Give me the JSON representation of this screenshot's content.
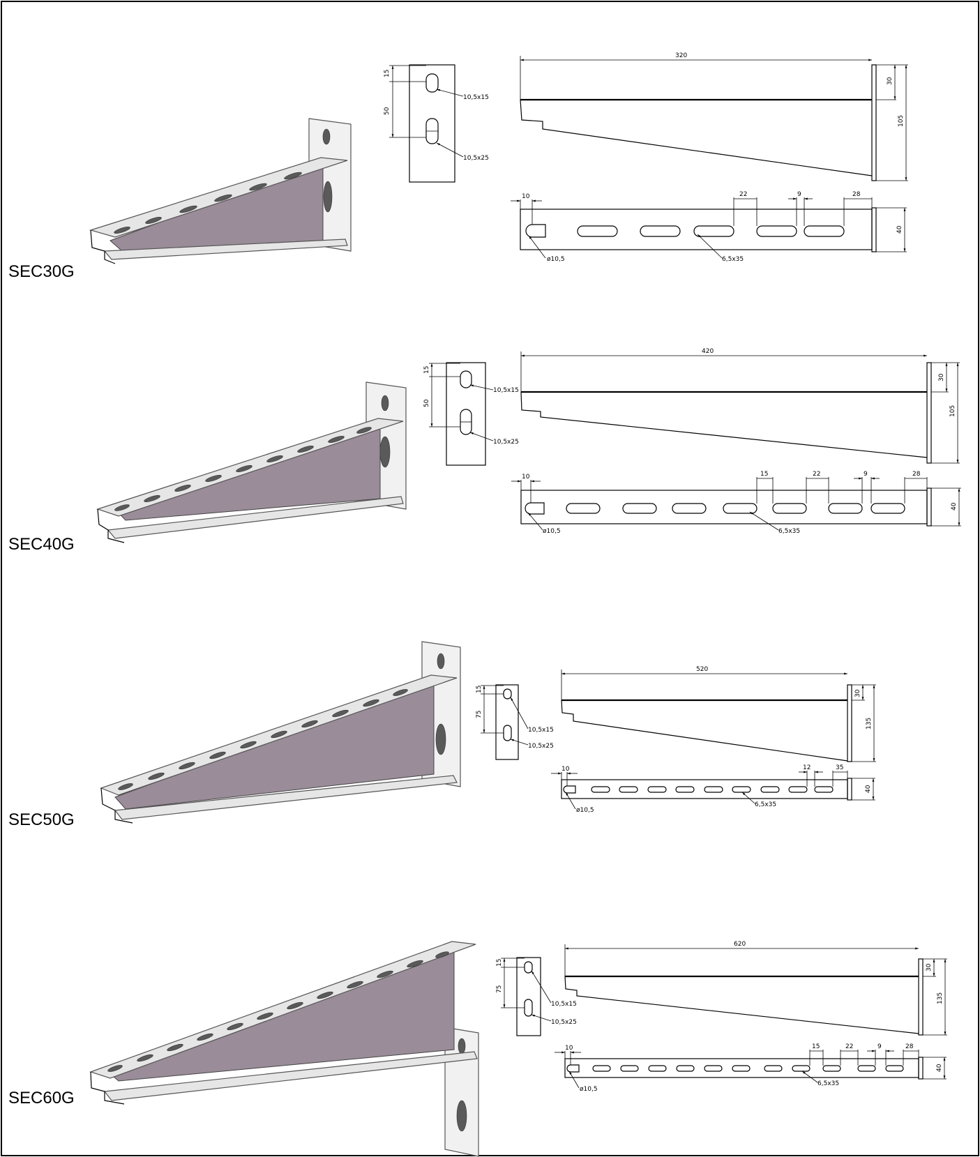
{
  "products": [
    {
      "label": "SEC30G",
      "front": {
        "top_gap": "15",
        "spacing": "50",
        "hole_top": "10,5x15",
        "hole_bottom": "10,5x25"
      },
      "side": {
        "length": "320",
        "top_height": "30",
        "total_height": "105"
      },
      "plan": {
        "end_offset": "10",
        "dims": [
          "22",
          "9",
          "28"
        ],
        "width": "40",
        "hole_dia": "ø10,5",
        "slot": "6,5x35"
      }
    },
    {
      "label": "SEC40G",
      "front": {
        "top_gap": "15",
        "spacing": "50",
        "hole_top": "10,5x15",
        "hole_bottom": "10,5x25"
      },
      "side": {
        "length": "420",
        "top_height": "30",
        "total_height": "105"
      },
      "plan": {
        "end_offset": "10",
        "dims": [
          "15",
          "22",
          "9",
          "28"
        ],
        "width": "40",
        "hole_dia": "ø10,5",
        "slot": "6,5x35"
      }
    },
    {
      "label": "SEC50G",
      "front": {
        "top_gap": "15",
        "spacing": "75",
        "hole_top": "10,5x15",
        "hole_bottom": "10,5x25"
      },
      "side": {
        "length": "520",
        "top_height": "30",
        "total_height": "135"
      },
      "plan": {
        "end_offset": "10",
        "dims": [
          "12",
          "35"
        ],
        "width": "40",
        "hole_dia": "ø10,5",
        "slot": "6,5x35"
      }
    },
    {
      "label": "SEC60G",
      "front": {
        "top_gap": "15",
        "spacing": "75",
        "hole_top": "10,5x15",
        "hole_bottom": "10,5x25"
      },
      "side": {
        "length": "620",
        "top_height": "30",
        "total_height": "135"
      },
      "plan": {
        "end_offset": "10",
        "dims": [
          "15",
          "22",
          "9",
          "28"
        ],
        "width": "40",
        "hole_dia": "ø10,5",
        "slot": "6,5x35"
      }
    }
  ],
  "colors": {
    "web": "#9a8c98",
    "line": "#000000"
  }
}
